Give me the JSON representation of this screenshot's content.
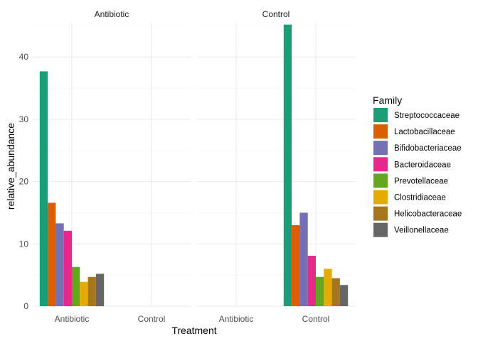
{
  "chart_data": {
    "type": "bar",
    "facet_by": "Treatment",
    "panels": [
      "Antibiotic",
      "Control"
    ],
    "categories": [
      "Antibiotic",
      "Control"
    ],
    "xlabel": "Treatment",
    "ylabel": "relative_abundance",
    "ylim": [
      0,
      45.5
    ],
    "yticks": [
      0,
      10,
      20,
      30,
      40
    ],
    "grid": true,
    "legend_title": "Family",
    "legend_position": "right",
    "series": [
      {
        "name": "Streptococcaceae",
        "color": "#1b9e77",
        "values": {
          "Antibiotic": 37.7,
          "Control": 45.2
        }
      },
      {
        "name": "Lactobacillaceae",
        "color": "#d95f02",
        "values": {
          "Antibiotic": 16.6,
          "Control": 13.0
        }
      },
      {
        "name": "Bifidobacteriaceae",
        "color": "#7570b3",
        "values": {
          "Antibiotic": 13.3,
          "Control": 15.0
        }
      },
      {
        "name": "Bacteroidaceae",
        "color": "#e7298a",
        "values": {
          "Antibiotic": 12.1,
          "Control": 8.1
        }
      },
      {
        "name": "Prevotellaceae",
        "color": "#66a61e",
        "values": {
          "Antibiotic": 6.3,
          "Control": 4.7
        }
      },
      {
        "name": "Clostridiaceae",
        "color": "#e6ab02",
        "values": {
          "Antibiotic": 3.9,
          "Control": 6.0
        }
      },
      {
        "name": "Helicobacteraceae",
        "color": "#a6761d",
        "values": {
          "Antibiotic": 4.7,
          "Control": 4.5
        }
      },
      {
        "name": "Veillonellaceae",
        "color": "#666666",
        "values": {
          "Antibiotic": 5.2,
          "Control": 3.4
        }
      }
    ]
  }
}
